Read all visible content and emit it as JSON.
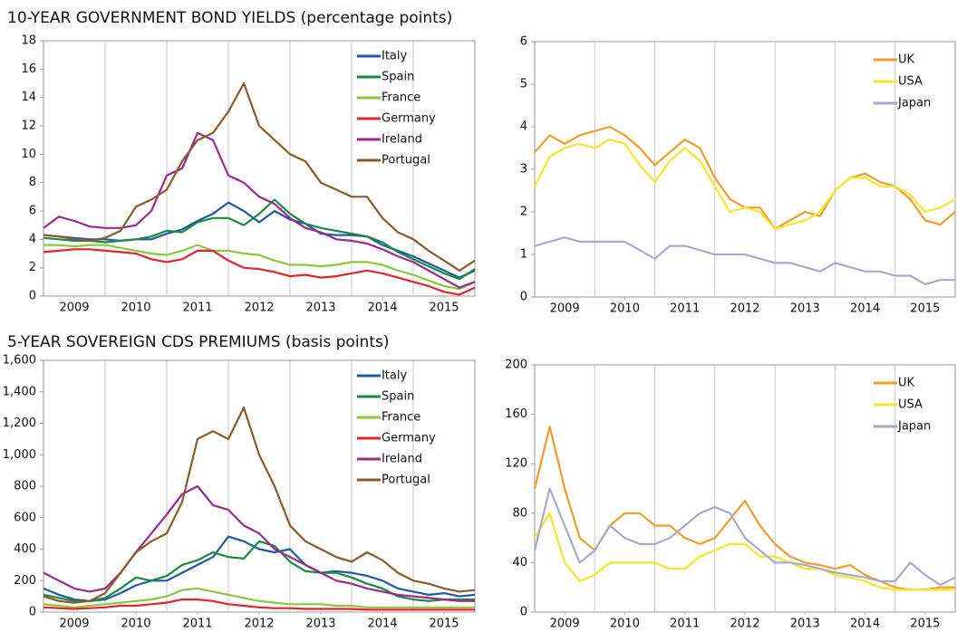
{
  "chart_data": [
    {
      "type": "line",
      "title": "10-YEAR GOVERNMENT BOND YIELDS (percentage points)",
      "x": [
        2009,
        2009.25,
        2009.5,
        2009.75,
        2010,
        2010.25,
        2010.5,
        2010.75,
        2011,
        2011.25,
        2011.5,
        2011.75,
        2012,
        2012.25,
        2012.5,
        2012.75,
        2013,
        2013.25,
        2013.5,
        2013.75,
        2014,
        2014.25,
        2014.5,
        2014.75,
        2015,
        2015.25,
        2015.5,
        2015.75,
        2016
      ],
      "xlim": [
        2009,
        2016
      ],
      "xticks": [
        {
          "value": 2009.5,
          "label": "2009"
        },
        {
          "value": 2010.5,
          "label": "2010"
        },
        {
          "value": 2011.5,
          "label": "2011"
        },
        {
          "value": 2012.5,
          "label": "2012"
        },
        {
          "value": 2013.5,
          "label": "2013"
        },
        {
          "value": 2014.5,
          "label": "2014"
        },
        {
          "value": 2015.5,
          "label": "2015"
        }
      ],
      "ylim": [
        0,
        18
      ],
      "yticks": [
        0,
        2,
        4,
        6,
        8,
        10,
        12,
        14,
        16,
        18
      ],
      "grid": true,
      "legend": "top-right",
      "series": [
        {
          "name": "Italy",
          "color": "#1f5aa6",
          "values": [
            4.3,
            4.2,
            4.1,
            4.0,
            4.0,
            3.9,
            4.0,
            4.0,
            4.4,
            4.7,
            5.3,
            5.8,
            6.6,
            6.0,
            5.2,
            6.0,
            5.4,
            5.1,
            4.4,
            4.3,
            4.3,
            4.2,
            3.6,
            3.2,
            2.8,
            2.3,
            1.8,
            1.3,
            1.8
          ]
        },
        {
          "name": "Spain",
          "color": "#1a8a3c",
          "values": [
            4.1,
            4.0,
            3.9,
            3.9,
            3.8,
            3.9,
            4.0,
            4.2,
            4.6,
            4.5,
            5.2,
            5.5,
            5.5,
            5.0,
            5.8,
            6.8,
            5.8,
            5.1,
            4.8,
            4.6,
            4.4,
            4.2,
            3.8,
            3.1,
            2.6,
            2.1,
            1.6,
            1.2,
            1.9
          ]
        },
        {
          "name": "France",
          "color": "#8cc63f",
          "values": [
            3.6,
            3.6,
            3.5,
            3.6,
            3.6,
            3.4,
            3.2,
            3.0,
            2.9,
            3.2,
            3.6,
            3.2,
            3.2,
            3.0,
            2.9,
            2.5,
            2.2,
            2.2,
            2.1,
            2.2,
            2.4,
            2.4,
            2.2,
            1.8,
            1.5,
            1.1,
            0.7,
            0.5,
            1.0
          ]
        },
        {
          "name": "Germany",
          "color": "#e3242b",
          "values": [
            3.1,
            3.2,
            3.3,
            3.3,
            3.2,
            3.1,
            3.0,
            2.6,
            2.4,
            2.6,
            3.2,
            3.2,
            2.5,
            2.0,
            1.9,
            1.7,
            1.4,
            1.5,
            1.3,
            1.4,
            1.6,
            1.8,
            1.6,
            1.3,
            1.0,
            0.7,
            0.3,
            0.1,
            0.6
          ]
        },
        {
          "name": "Ireland",
          "color": "#9b2a8e",
          "values": [
            4.8,
            5.6,
            5.3,
            4.9,
            4.8,
            4.8,
            5.0,
            6.0,
            8.5,
            9.0,
            11.5,
            11.0,
            8.5,
            8.0,
            7.0,
            6.5,
            5.5,
            4.8,
            4.5,
            4.0,
            3.9,
            3.7,
            3.3,
            2.8,
            2.4,
            1.8,
            1.2,
            0.6,
            1.0
          ]
        },
        {
          "name": "Portugal",
          "color": "#8b5a2b",
          "values": [
            4.3,
            4.2,
            4.0,
            3.9,
            4.1,
            4.6,
            6.3,
            6.8,
            7.5,
            9.5,
            11,
            11.5,
            13,
            15,
            12,
            11,
            10,
            9.5,
            8,
            7.5,
            7,
            7,
            5.5,
            4.5,
            4.0,
            3.2,
            2.5,
            1.8,
            2.5
          ]
        }
      ]
    },
    {
      "type": "line",
      "x": [
        2009,
        2009.25,
        2009.5,
        2009.75,
        2010,
        2010.25,
        2010.5,
        2010.75,
        2011,
        2011.25,
        2011.5,
        2011.75,
        2012,
        2012.25,
        2012.5,
        2012.75,
        2013,
        2013.25,
        2013.5,
        2013.75,
        2014,
        2014.25,
        2014.5,
        2014.75,
        2015,
        2015.25,
        2015.5,
        2015.75,
        2016
      ],
      "xlim": [
        2009,
        2016
      ],
      "xticks": [
        {
          "value": 2009.5,
          "label": "2009"
        },
        {
          "value": 2010.5,
          "label": "2010"
        },
        {
          "value": 2011.5,
          "label": "2011"
        },
        {
          "value": 2012.5,
          "label": "2012"
        },
        {
          "value": 2013.5,
          "label": "2013"
        },
        {
          "value": 2014.5,
          "label": "2014"
        },
        {
          "value": 2015.5,
          "label": "2015"
        }
      ],
      "ylim": [
        0,
        6
      ],
      "yticks": [
        0,
        1,
        2,
        3,
        4,
        5,
        6
      ],
      "grid": true,
      "legend": "top-right",
      "series": [
        {
          "name": "UK",
          "color": "#f39c2a",
          "values": [
            3.4,
            3.8,
            3.6,
            3.8,
            3.9,
            4.0,
            3.8,
            3.5,
            3.1,
            3.4,
            3.7,
            3.5,
            2.8,
            2.3,
            2.1,
            2.1,
            1.6,
            1.8,
            2.0,
            1.9,
            2.5,
            2.8,
            2.9,
            2.7,
            2.6,
            2.3,
            1.8,
            1.7,
            2.0
          ]
        },
        {
          "name": "USA",
          "color": "#f5e62a",
          "values": [
            2.6,
            3.3,
            3.5,
            3.6,
            3.5,
            3.7,
            3.6,
            3.1,
            2.7,
            3.2,
            3.5,
            3.2,
            2.6,
            2.0,
            2.1,
            2.0,
            1.6,
            1.7,
            1.8,
            2.0,
            2.5,
            2.8,
            2.8,
            2.6,
            2.6,
            2.4,
            2.0,
            2.1,
            2.3
          ]
        },
        {
          "name": "Japan",
          "color": "#a9a9cf",
          "values": [
            1.2,
            1.3,
            1.4,
            1.3,
            1.3,
            1.3,
            1.3,
            1.1,
            0.9,
            1.2,
            1.2,
            1.1,
            1.0,
            1.0,
            1.0,
            0.9,
            0.8,
            0.8,
            0.7,
            0.6,
            0.8,
            0.7,
            0.6,
            0.6,
            0.5,
            0.5,
            0.3,
            0.4,
            0.4
          ]
        }
      ]
    },
    {
      "type": "line",
      "title": "5-YEAR SOVEREIGN CDS PREMIUMS (basis points)",
      "x": [
        2009,
        2009.25,
        2009.5,
        2009.75,
        2010,
        2010.25,
        2010.5,
        2010.75,
        2011,
        2011.25,
        2011.5,
        2011.75,
        2012,
        2012.25,
        2012.5,
        2012.75,
        2013,
        2013.25,
        2013.5,
        2013.75,
        2014,
        2014.25,
        2014.5,
        2014.75,
        2015,
        2015.25,
        2015.5,
        2015.75,
        2016
      ],
      "xlim": [
        2009,
        2016
      ],
      "xticks": [
        {
          "value": 2009.5,
          "label": "2009"
        },
        {
          "value": 2010.5,
          "label": "2010"
        },
        {
          "value": 2011.5,
          "label": "2011"
        },
        {
          "value": 2012.5,
          "label": "2012"
        },
        {
          "value": 2013.5,
          "label": "2013"
        },
        {
          "value": 2014.5,
          "label": "2014"
        },
        {
          "value": 2015.5,
          "label": "2015"
        }
      ],
      "ylim": [
        0,
        1600
      ],
      "yticks": [
        0,
        200,
        400,
        600,
        800,
        {
          "value": 1000,
          "label": "1,000"
        },
        {
          "value": 1200,
          "label": "1,200"
        },
        {
          "value": 1400,
          "label": "1,400"
        },
        {
          "value": 1600,
          "label": "1,600"
        }
      ],
      "grid": true,
      "legend": "top-right",
      "series": [
        {
          "name": "Italy",
          "color": "#1f5aa6",
          "values": [
            150,
            110,
            80,
            70,
            80,
            120,
            170,
            200,
            200,
            250,
            300,
            350,
            480,
            450,
            400,
            380,
            400,
            300,
            250,
            260,
            250,
            230,
            200,
            150,
            130,
            110,
            120,
            100,
            110
          ]
        },
        {
          "name": "Spain",
          "color": "#1a8a3c",
          "values": [
            110,
            90,
            70,
            70,
            90,
            150,
            220,
            200,
            230,
            300,
            330,
            380,
            350,
            340,
            450,
            420,
            320,
            260,
            250,
            250,
            220,
            180,
            150,
            100,
            80,
            70,
            80,
            80,
            80
          ]
        },
        {
          "name": "France",
          "color": "#8cc63f",
          "values": [
            50,
            40,
            30,
            40,
            50,
            60,
            70,
            80,
            100,
            140,
            150,
            130,
            110,
            90,
            70,
            60,
            50,
            50,
            50,
            40,
            40,
            30,
            30,
            30,
            30,
            30,
            30,
            30,
            30
          ]
        },
        {
          "name": "Germany",
          "color": "#e3242b",
          "values": [
            30,
            25,
            20,
            25,
            30,
            40,
            40,
            50,
            60,
            80,
            80,
            70,
            50,
            40,
            30,
            25,
            25,
            20,
            20,
            20,
            20,
            15,
            15,
            15,
            15,
            15,
            15,
            15,
            15
          ]
        },
        {
          "name": "Ireland",
          "color": "#9b2a8e",
          "values": [
            250,
            200,
            150,
            130,
            150,
            250,
            380,
            500,
            620,
            750,
            800,
            680,
            650,
            550,
            500,
            400,
            350,
            300,
            250,
            200,
            180,
            150,
            130,
            110,
            100,
            90,
            80,
            70,
            70
          ]
        },
        {
          "name": "Portugal",
          "color": "#8b5a2b",
          "values": [
            100,
            70,
            60,
            70,
            120,
            250,
            380,
            450,
            500,
            700,
            1100,
            1150,
            1100,
            1300,
            1000,
            800,
            550,
            450,
            400,
            350,
            320,
            380,
            330,
            250,
            200,
            180,
            150,
            130,
            140
          ]
        }
      ]
    },
    {
      "type": "line",
      "x": [
        2009,
        2009.25,
        2009.5,
        2009.75,
        2010,
        2010.25,
        2010.5,
        2010.75,
        2011,
        2011.25,
        2011.5,
        2011.75,
        2012,
        2012.25,
        2012.5,
        2012.75,
        2013,
        2013.25,
        2013.5,
        2013.75,
        2014,
        2014.25,
        2014.5,
        2014.75,
        2015,
        2015.25,
        2015.5,
        2015.75,
        2016
      ],
      "xlim": [
        2009,
        2016
      ],
      "xticks": [
        {
          "value": 2009.5,
          "label": "2009"
        },
        {
          "value": 2010.5,
          "label": "2010"
        },
        {
          "value": 2011.5,
          "label": "2011"
        },
        {
          "value": 2012.5,
          "label": "2012"
        },
        {
          "value": 2013.5,
          "label": "2013"
        },
        {
          "value": 2014.5,
          "label": "2014"
        },
        {
          "value": 2015.5,
          "label": "2015"
        }
      ],
      "ylim": [
        0,
        200
      ],
      "yticks": [
        0,
        40,
        80,
        120,
        160,
        200
      ],
      "grid": true,
      "legend": "top-right",
      "series": [
        {
          "name": "UK",
          "color": "#f39c2a",
          "values": [
            100,
            150,
            100,
            60,
            50,
            70,
            80,
            80,
            70,
            70,
            60,
            55,
            60,
            75,
            90,
            70,
            55,
            45,
            40,
            38,
            35,
            38,
            30,
            25,
            20,
            18,
            18,
            20,
            20
          ]
        },
        {
          "name": "USA",
          "color": "#f5e62a",
          "values": [
            60,
            80,
            40,
            25,
            30,
            40,
            40,
            40,
            40,
            35,
            35,
            45,
            50,
            55,
            55,
            45,
            45,
            40,
            35,
            35,
            30,
            28,
            25,
            20,
            18,
            18,
            18,
            18,
            18
          ]
        },
        {
          "name": "Japan",
          "color": "#a9a9cf",
          "values": [
            50,
            100,
            70,
            40,
            50,
            70,
            60,
            55,
            55,
            60,
            70,
            80,
            85,
            80,
            60,
            50,
            40,
            40,
            38,
            35,
            32,
            30,
            28,
            25,
            25,
            40,
            30,
            22,
            28
          ]
        }
      ]
    }
  ]
}
